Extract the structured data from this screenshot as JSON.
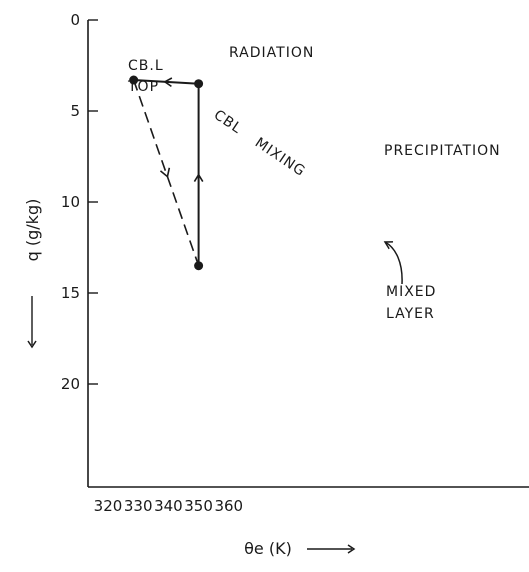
{
  "chart_data": {
    "type": "line",
    "xlabel": "θe (K)",
    "ylabel": "q (g/kg)",
    "xlim": [
      320,
      365
    ],
    "ylim": [
      25,
      0
    ],
    "y_axis_inverted": true,
    "x_ticks": [
      "320",
      "330",
      "340",
      "350",
      "360"
    ],
    "y_ticks": [
      "0",
      "5",
      "10",
      "15",
      "20"
    ],
    "grid": false,
    "legend": "none",
    "points": [
      {
        "label": "CB.L TOP",
        "label_lines": [
          "CB.L",
          "TOP"
        ],
        "x": 328.5,
        "y": 3.3
      },
      {
        "label": "",
        "x": 350.0,
        "y": 3.5
      },
      {
        "label": "MIXED LAYER",
        "label_lines": [
          "MIXED",
          "LAYER"
        ],
        "x": 350.0,
        "y": 13.5
      }
    ],
    "paths": [
      {
        "name": "RADIATION",
        "from": [
          350.0,
          3.5
        ],
        "to": [
          328.5,
          3.3
        ],
        "style": "solid",
        "arrow_direction": "left"
      },
      {
        "name": "PRECIPITATION",
        "from": [
          350.0,
          13.5
        ],
        "to": [
          350.0,
          3.5
        ],
        "style": "solid",
        "arrow_direction": "up"
      },
      {
        "name": "CBL MIXING",
        "from": [
          328.5,
          3.3
        ],
        "to": [
          350.0,
          13.5
        ],
        "style": "dashed",
        "arrow_direction": "down-right"
      }
    ]
  }
}
